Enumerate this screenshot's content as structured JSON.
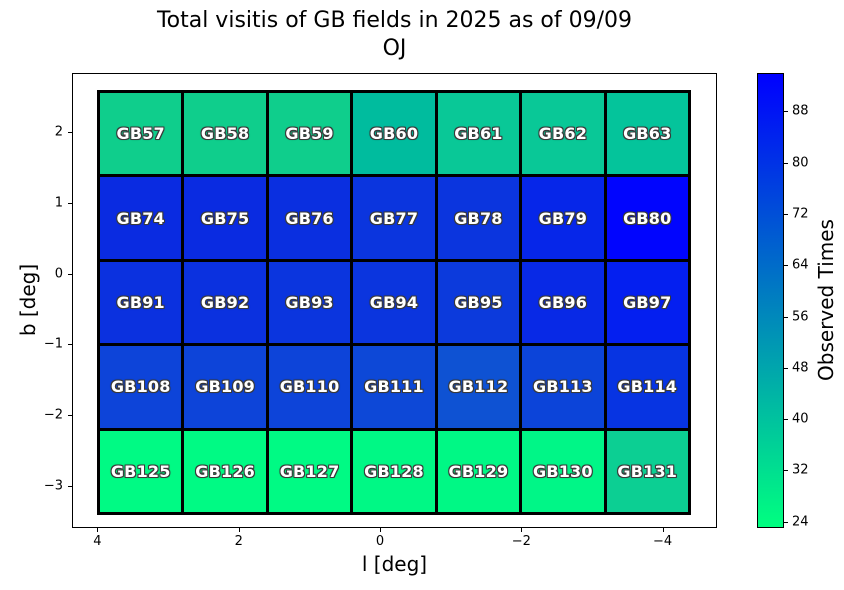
{
  "title": {
    "line1": "Total visitis of GB fields in 2025 as of 09/09",
    "line2": "OJ"
  },
  "axes": {
    "xlabel": "l [deg]",
    "ylabel": "b [deg]",
    "x_tick_labels": [
      "4",
      "2",
      "0",
      "−2",
      "−4"
    ],
    "y_tick_labels": [
      "2",
      "1",
      "0",
      "−1",
      "−2",
      "−3"
    ]
  },
  "colorbar": {
    "label": "Observed Times",
    "tick_labels": [
      "88",
      "80",
      "72",
      "64",
      "56",
      "48",
      "40",
      "32",
      "24"
    ],
    "top_color": "#0000ff",
    "bottom_color": "#00ff80"
  },
  "chart_data": {
    "type": "heatmap",
    "title": "Total visitis of GB fields in 2025 as of 09/09 OJ",
    "xlabel": "l [deg]",
    "ylabel": "b [deg]",
    "x_tick_values": [
      4,
      2,
      0,
      -2,
      -4
    ],
    "y_tick_values": [
      2,
      1,
      0,
      -1,
      -2,
      -3
    ],
    "x_range": [
      4.36,
      -4.77
    ],
    "y_range": [
      -3.6,
      2.84
    ],
    "colormap": "winter_r (low=spring-green, high=blue)",
    "colorbar": {
      "label": "Observed Times",
      "tick_values": [
        88,
        80,
        72,
        64,
        56,
        48,
        40,
        32,
        24
      ],
      "vmin": 23,
      "vmax": 94
    },
    "grid_extent": {
      "l": [
        4.0,
        -4.4
      ],
      "b": [
        2.6,
        -3.4
      ]
    },
    "rows": [
      {
        "b_center": 2.0,
        "fields": [
          {
            "name": "GB57",
            "value": 37,
            "color": "#0fce8c"
          },
          {
            "name": "GB58",
            "value": 37,
            "color": "#0fce8c"
          },
          {
            "name": "GB59",
            "value": 37,
            "color": "#0fce8c"
          },
          {
            "name": "GB60",
            "value": 42,
            "color": "#00bc9e"
          },
          {
            "name": "GB61",
            "value": 39,
            "color": "#09c897"
          },
          {
            "name": "GB62",
            "value": 39,
            "color": "#09c897"
          },
          {
            "name": "GB63",
            "value": 40,
            "color": "#04c49b"
          }
        ]
      },
      {
        "b_center": 0.8,
        "fields": [
          {
            "name": "GB74",
            "value": 82,
            "color": "#0a2be1"
          },
          {
            "name": "GB75",
            "value": 82,
            "color": "#0a2be1"
          },
          {
            "name": "GB76",
            "value": 81,
            "color": "#0a2fe0"
          },
          {
            "name": "GB77",
            "value": 80,
            "color": "#0b35de"
          },
          {
            "name": "GB78",
            "value": 80,
            "color": "#0b35de"
          },
          {
            "name": "GB79",
            "value": 84,
            "color": "#0626e9"
          },
          {
            "name": "GB80",
            "value": 94,
            "color": "#0105fe"
          }
        ]
      },
      {
        "b_center": -0.4,
        "fields": [
          {
            "name": "GB91",
            "value": 81,
            "color": "#0b31df"
          },
          {
            "name": "GB92",
            "value": 81,
            "color": "#0b31df"
          },
          {
            "name": "GB93",
            "value": 80,
            "color": "#0b35de"
          },
          {
            "name": "GB94",
            "value": 80,
            "color": "#0b35de"
          },
          {
            "name": "GB95",
            "value": 79,
            "color": "#0c3adc"
          },
          {
            "name": "GB96",
            "value": 83,
            "color": "#0829e6"
          },
          {
            "name": "GB97",
            "value": 86,
            "color": "#041ff0"
          }
        ]
      },
      {
        "b_center": -1.6,
        "fields": [
          {
            "name": "GB108",
            "value": 76,
            "color": "#0d44d9"
          },
          {
            "name": "GB109",
            "value": 76,
            "color": "#0d44d9"
          },
          {
            "name": "GB110",
            "value": 76,
            "color": "#0d44d9"
          },
          {
            "name": "GB111",
            "value": 75,
            "color": "#0d48d7"
          },
          {
            "name": "GB112",
            "value": 72,
            "color": "#0e52d3"
          },
          {
            "name": "GB113",
            "value": 76,
            "color": "#0c44d9"
          },
          {
            "name": "GB114",
            "value": 80,
            "color": "#0734e2"
          }
        ]
      },
      {
        "b_center": -2.8,
        "fields": [
          {
            "name": "GB125",
            "value": 23,
            "color": "#00fa84"
          },
          {
            "name": "GB126",
            "value": 23,
            "color": "#00fa84"
          },
          {
            "name": "GB127",
            "value": 23,
            "color": "#00fa84"
          },
          {
            "name": "GB128",
            "value": 23,
            "color": "#00f885"
          },
          {
            "name": "GB129",
            "value": 23,
            "color": "#00f885"
          },
          {
            "name": "GB130",
            "value": 24,
            "color": "#00f687"
          },
          {
            "name": "GB131",
            "value": 37,
            "color": "#0ccf93"
          }
        ]
      }
    ]
  }
}
